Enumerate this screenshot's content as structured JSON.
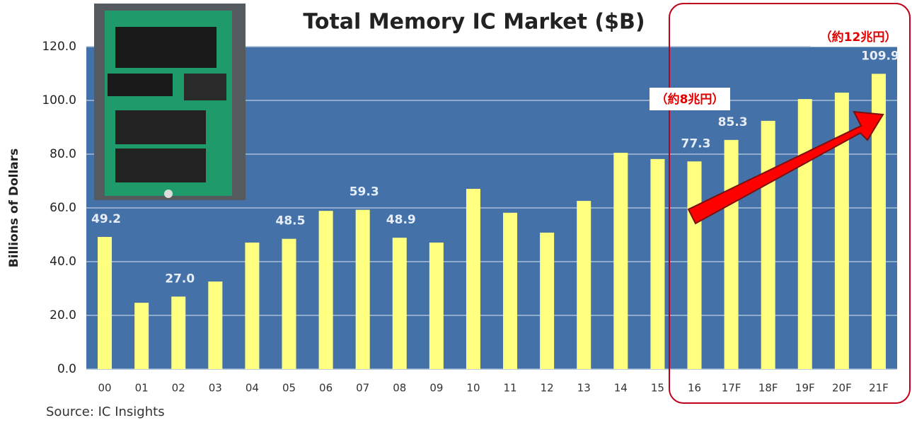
{
  "chart_data": {
    "type": "bar",
    "title": "Total Memory IC Market ($B)",
    "ylabel": "Billions of Dollars",
    "source": "Source:  IC Insights",
    "annotations": [
      "（約8兆円）",
      "（約12兆円）"
    ],
    "categories": [
      "00",
      "01",
      "02",
      "03",
      "04",
      "05",
      "06",
      "07",
      "08",
      "09",
      "10",
      "11",
      "12",
      "13",
      "14",
      "15",
      "16",
      "17F",
      "18F",
      "19F",
      "20F",
      "21F"
    ],
    "values": [
      49.2,
      24.7,
      27.0,
      32.6,
      47.1,
      48.5,
      58.9,
      59.3,
      48.9,
      47.1,
      67.1,
      58.2,
      50.8,
      62.6,
      80.5,
      78.2,
      77.3,
      85.3,
      92.4,
      100.5,
      102.9,
      109.9
    ],
    "value_labels": [
      "49.2",
      null,
      "27.0",
      null,
      null,
      "48.5",
      null,
      "59.3",
      "48.9",
      null,
      null,
      null,
      null,
      null,
      null,
      null,
      "77.3",
      "85.3",
      null,
      null,
      null,
      "109.9"
    ],
    "color": "#ffff80",
    "background": "#4371a8",
    "ylim": [
      0,
      120
    ],
    "yticks": [
      {
        "value": 0,
        "label": "0.0"
      },
      {
        "value": 20,
        "label": "20.0"
      },
      {
        "value": 40,
        "label": "40.0"
      },
      {
        "value": 60,
        "label": "60.0"
      },
      {
        "value": 80,
        "label": "80.0"
      },
      {
        "value": 100,
        "label": "100.0"
      },
      {
        "value": 120,
        "label": "120.0"
      }
    ],
    "grid": true
  }
}
